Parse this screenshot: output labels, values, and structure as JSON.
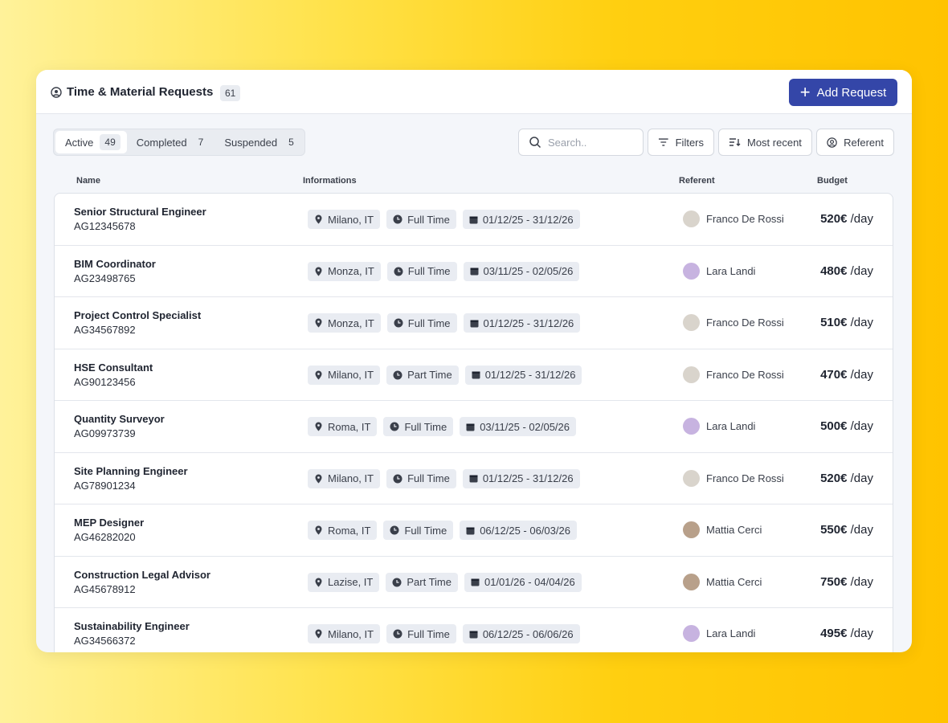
{
  "header": {
    "title": "Time & Material Requests",
    "count": "61",
    "button": "Add Request"
  },
  "tabs": [
    {
      "label": "Active",
      "count": "49"
    },
    {
      "label": "Completed",
      "count": "7"
    },
    {
      "label": "Suspended",
      "count": "5"
    }
  ],
  "toolbar": {
    "search_placeholder": "Search..",
    "filters": "Filters",
    "sort": "Most recent",
    "referent": "Referent"
  },
  "table": {
    "columns": [
      "Name",
      "Informations",
      "Referent",
      "Budget"
    ],
    "rows": [
      {
        "name": "Senior Structural Engineer",
        "code": "AG12345678",
        "location": "Milano, IT",
        "schedule": "Full Time",
        "dates": "01/12/25 - 31/12/26",
        "referent": "Franco De Rossi",
        "budget": "520€",
        "unit": "/day"
      },
      {
        "name": "BIM Coordinator",
        "code": "AG23498765",
        "location": "Monza, IT",
        "schedule": "Full Time",
        "dates": "03/11/25 - 02/05/26",
        "referent": "Lara Landi",
        "budget": "480€",
        "unit": "/day"
      },
      {
        "name": "Project Control Specialist",
        "code": "AG34567892",
        "location": "Monza, IT",
        "schedule": "Full Time",
        "dates": "01/12/25 - 31/12/26",
        "referent": "Franco De Rossi",
        "budget": "510€",
        "unit": "/day"
      },
      {
        "name": "HSE Consultant",
        "code": "AG90123456",
        "location": "Milano, IT",
        "schedule": "Part Time",
        "dates": "01/12/25 - 31/12/26",
        "referent": "Franco De Rossi",
        "budget": "470€",
        "unit": "/day"
      },
      {
        "name": "Quantity Surveyor",
        "code": "AG09973739",
        "location": "Roma, IT",
        "schedule": "Full Time",
        "dates": "03/11/25 - 02/05/26",
        "referent": "Lara Landi",
        "budget": "500€",
        "unit": "/day"
      },
      {
        "name": "Site Planning Engineer",
        "code": "AG78901234",
        "location": "Milano, IT",
        "schedule": "Full Time",
        "dates": "01/12/25 - 31/12/26",
        "referent": "Franco De Rossi",
        "budget": "520€",
        "unit": "/day"
      },
      {
        "name": "MEP Designer",
        "code": "AG46282020",
        "location": "Roma, IT",
        "schedule": "Full Time",
        "dates": "06/12/25 - 06/03/26",
        "referent": "Mattia Cerci",
        "budget": "550€",
        "unit": "/day"
      },
      {
        "name": "Construction Legal Advisor",
        "code": "AG45678912",
        "location": "Lazise, IT",
        "schedule": "Part Time",
        "dates": "01/01/26 - 04/04/26",
        "referent": "Mattia Cerci",
        "budget": "750€",
        "unit": "/day"
      },
      {
        "name": "Sustainability Engineer",
        "code": "AG34566372",
        "location": "Milano, IT",
        "schedule": "Full Time",
        "dates": "06/12/25 - 06/06/26",
        "referent": "Lara Landi",
        "budget": "495€",
        "unit": "/day"
      }
    ]
  }
}
